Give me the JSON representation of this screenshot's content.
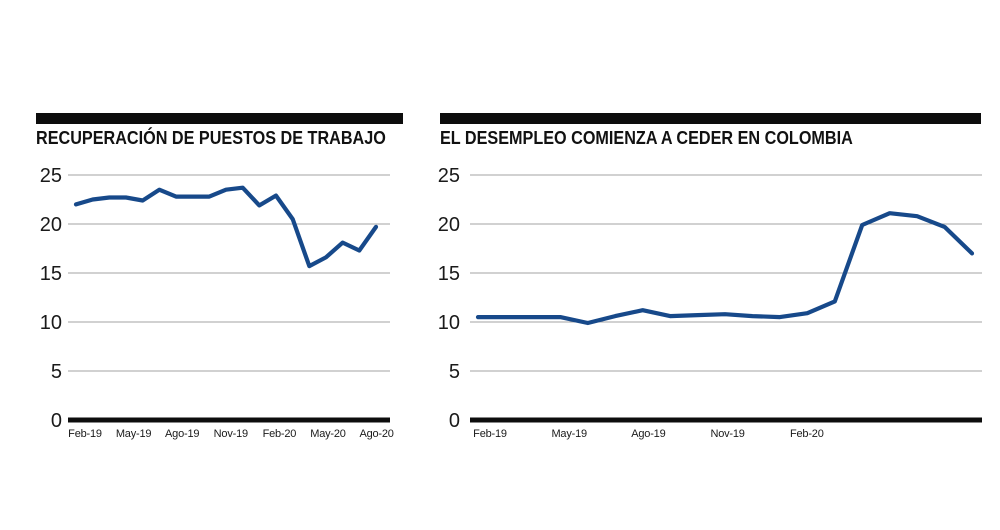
{
  "page": {
    "background": "#ffffff"
  },
  "chart_data": [
    {
      "type": "line",
      "title": "RECUPERACIÓN DE PUESTOS DE TRABAJO",
      "x": [
        "Feb-19",
        "Mar-19",
        "Abr-19",
        "May-19",
        "Jun-19",
        "Jul-19",
        "Ago-19",
        "Sep-19",
        "Oct-19",
        "Nov-19",
        "Dic-19",
        "Ene-20",
        "Feb-20",
        "Mar-20",
        "Abr-20",
        "May-20",
        "Jun-20",
        "Jul-20",
        "Ago-20"
      ],
      "values": [
        22.0,
        22.5,
        22.7,
        22.7,
        22.4,
        23.5,
        22.8,
        22.8,
        22.8,
        23.5,
        23.7,
        21.9,
        22.9,
        20.5,
        15.7,
        16.6,
        18.1,
        17.3,
        19.7
      ],
      "x_tick_labels": [
        "Feb-19",
        "May-19",
        "Ago-19",
        "Nov-19",
        "Feb-20",
        "May-20",
        "Ago-20"
      ],
      "yticks": [
        0,
        5,
        10,
        15,
        20,
        25
      ],
      "ylim": [
        0,
        25
      ],
      "grid": true,
      "legend": "none",
      "line_color": "#17498a",
      "axis_color": "#0d0d0d"
    },
    {
      "type": "line",
      "title": "EL DESEMPLEO COMIENZA A CEDER EN COLOMBIA",
      "x": [
        "Feb-19",
        "Mar-19",
        "Abr-19",
        "May-19",
        "Jun-19",
        "Jul-19",
        "Ago-19",
        "Sep-19",
        "Oct-19",
        "Nov-19",
        "Dic-19",
        "Ene-20",
        "Feb-20",
        "Mar-20",
        "Abr-20",
        "May-20",
        "Jun-20",
        "Jul-20",
        "Ago-20"
      ],
      "values": [
        10.5,
        10.5,
        10.5,
        10.5,
        9.9,
        10.6,
        11.2,
        10.6,
        10.7,
        10.8,
        10.6,
        10.5,
        10.9,
        12.1,
        19.9,
        21.1,
        20.8,
        19.7,
        17.0
      ],
      "x_tick_labels": [
        "Feb-19",
        "May-19",
        "Ago-19",
        "Nov-19",
        "Feb-20"
      ],
      "yticks": [
        0,
        5,
        10,
        15,
        20,
        25
      ],
      "ylim": [
        0,
        25
      ],
      "grid": true,
      "legend": "none",
      "line_color": "#17498a",
      "axis_color": "#0d0d0d"
    }
  ]
}
